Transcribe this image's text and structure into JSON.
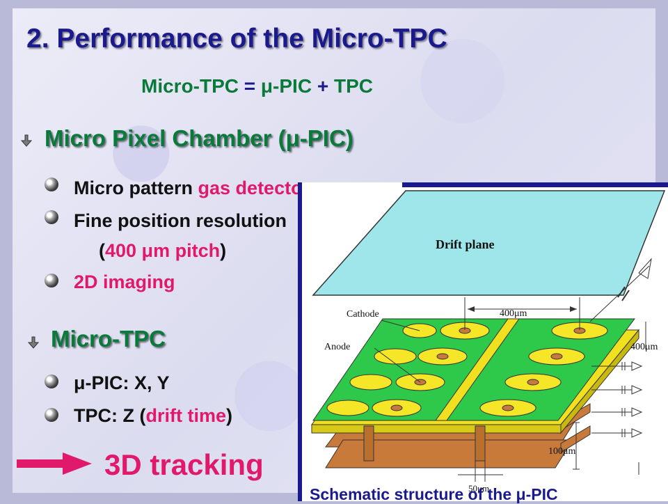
{
  "slide": {
    "title": "2. Performance of the Micro-TPC",
    "equation": {
      "lhs": "Micro-TPC",
      "op1": "=",
      "a": "μ-PIC",
      "op2": "+",
      "b": "TPC"
    },
    "sections": [
      {
        "heading": "Micro Pixel Chamber (μ-PIC)",
        "bullets": [
          {
            "plain": "Micro pattern ",
            "highlight": "gas detector"
          },
          {
            "plain": "Fine position resolution"
          },
          {
            "paren_open": "(",
            "highlight": "400 μm pitch",
            "paren_close": ")"
          },
          {
            "highlight": "2D imaging"
          }
        ]
      },
      {
        "heading": "Micro-TPC",
        "bullets": [
          {
            "plain": "μ-PIC: X, Y"
          },
          {
            "plain": "TPC: Z (",
            "highlight": "drift time",
            "paren_close": ")"
          }
        ]
      }
    ],
    "result": "3D tracking",
    "diagram": {
      "drift_plane_label": "Drift plane",
      "cathode_label": "Cathode",
      "anode_label": "Anode",
      "dim_top": "400μm",
      "dim_side": "400μm",
      "dim_depth": "100μm",
      "dim_bottom": "50μm",
      "caption": "Schematic structure of the μ-PIC"
    },
    "colors": {
      "title": "#1a1a8c",
      "heading": "#0a7a3a",
      "highlight": "#e0196a",
      "arrow": "#e0196a"
    }
  }
}
